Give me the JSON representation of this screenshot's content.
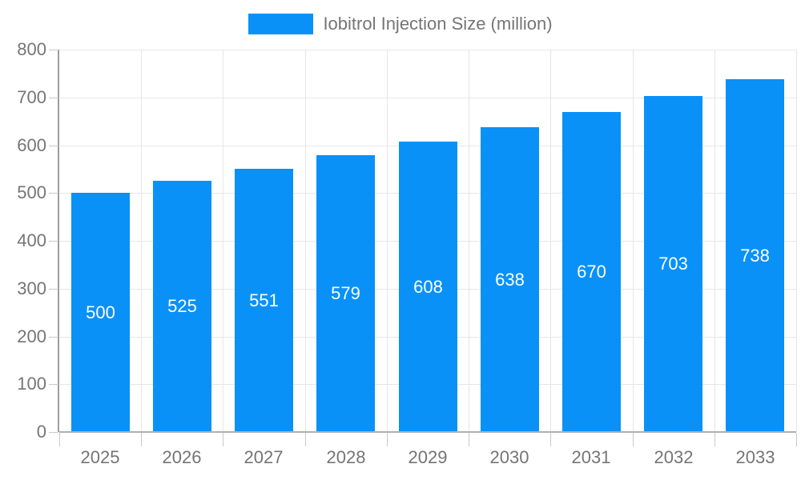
{
  "legend": {
    "label": "Iobitrol Injection Size (million)"
  },
  "chart_data": {
    "type": "bar",
    "title": "Iobitrol Injection Size (million)",
    "series_name": "Iobitrol Injection Size (million)",
    "categories": [
      "2025",
      "2026",
      "2027",
      "2028",
      "2029",
      "2030",
      "2031",
      "2032",
      "2033"
    ],
    "values": [
      500,
      525,
      551,
      579,
      608,
      638,
      670,
      703,
      738
    ],
    "bar_labels": [
      "500",
      "525",
      "551",
      "579",
      "608",
      "638",
      "670",
      "703",
      "738"
    ],
    "xlabel": "",
    "ylabel": "",
    "ylim": [
      0,
      800
    ],
    "ytick_interval": 100,
    "ytick_labels": [
      "0",
      "100",
      "200",
      "300",
      "400",
      "500",
      "600",
      "700",
      "800"
    ],
    "grid": true,
    "legend_position": "top-center",
    "bar_label_position": "inside-center",
    "colors": {
      "bar": "#0991f7",
      "bar_label": "#ffffff",
      "axis_text": "#757575",
      "y_axis_line": "#9e9e9e",
      "x_axis_line": "#b0b0b0",
      "gridline": "#e6e6e6",
      "tick": "#c9c9c9",
      "background": "#ffffff"
    }
  }
}
